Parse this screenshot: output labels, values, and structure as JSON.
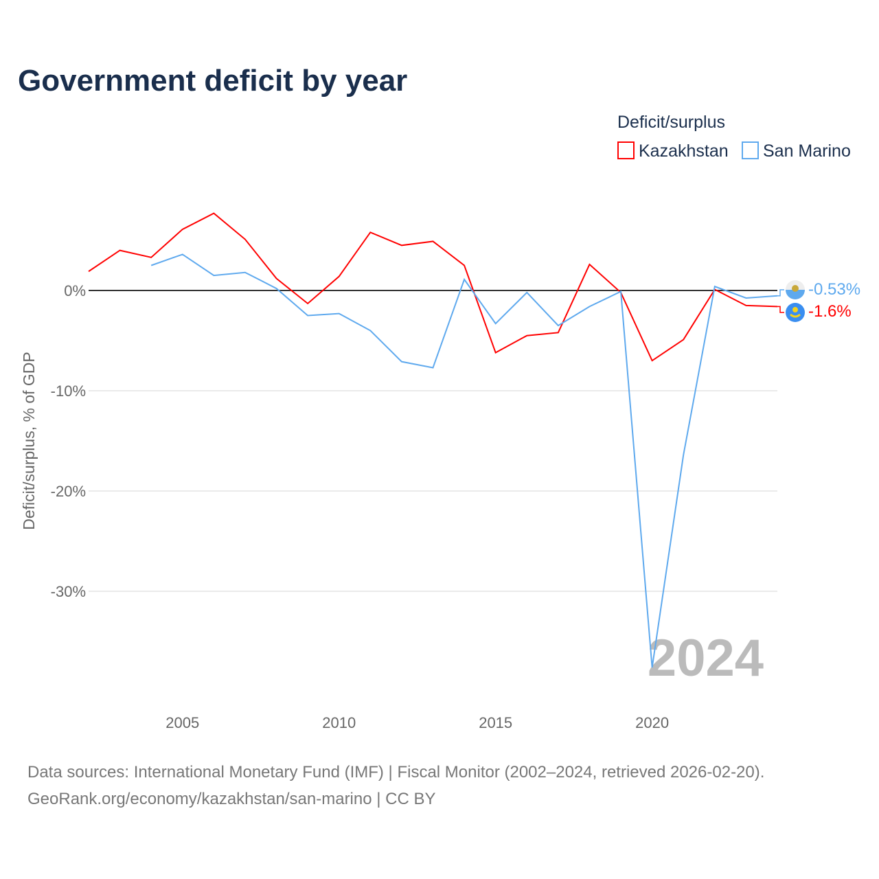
{
  "title": "Government deficit by year",
  "legend": {
    "title": "Deficit/surplus",
    "items": [
      {
        "name": "Kazakhstan",
        "color": "#ff0000"
      },
      {
        "name": "San Marino",
        "color": "#5ea9ee"
      }
    ]
  },
  "source_lines": [
    "Data sources: International Monetary Fund (IMF) | Fiscal Monitor (2002–2024, retrieved 2026-02-20).",
    "GeoRank.org/economy/kazakhstan/san-marino | CC BY"
  ],
  "chart_data": {
    "type": "line",
    "title": "Government deficit by year",
    "xlabel": "",
    "ylabel": "Deficit/surplus, % of GDP",
    "xlim": [
      2002,
      2024
    ],
    "ylim": [
      -40,
      9.5
    ],
    "x_ticks": [
      2005,
      2010,
      2015,
      2020
    ],
    "y_ticks": [
      0,
      -10,
      -20,
      -30
    ],
    "y_tick_labels": [
      "0%",
      "-10%",
      "-20%",
      "-30%"
    ],
    "current_year_label": "2024",
    "legend_position": "top-right",
    "series": [
      {
        "name": "Kazakhstan",
        "color": "#ff0000",
        "end_label": "-1.6%",
        "x": [
          2002,
          2003,
          2004,
          2005,
          2006,
          2007,
          2008,
          2009,
          2010,
          2011,
          2012,
          2013,
          2014,
          2015,
          2016,
          2017,
          2018,
          2019,
          2020,
          2021,
          2022,
          2023,
          2024
        ],
        "values": [
          1.9,
          4.0,
          3.3,
          6.1,
          7.7,
          5.1,
          1.2,
          -1.3,
          1.4,
          5.8,
          4.5,
          4.9,
          2.5,
          -6.2,
          -4.5,
          -4.2,
          2.6,
          -0.2,
          -7.0,
          -4.9,
          0.1,
          -1.5,
          -1.6
        ]
      },
      {
        "name": "San Marino",
        "color": "#5ea9ee",
        "end_label": "-0.53%",
        "x": [
          2004,
          2005,
          2006,
          2007,
          2008,
          2009,
          2010,
          2011,
          2012,
          2013,
          2014,
          2015,
          2016,
          2017,
          2018,
          2019,
          2020,
          2021,
          2022,
          2023,
          2024
        ],
        "values": [
          2.5,
          3.6,
          1.5,
          1.8,
          0.2,
          -2.5,
          -2.3,
          -4.0,
          -7.1,
          -7.7,
          1.1,
          -3.3,
          -0.2,
          -3.5,
          -1.6,
          -0.1,
          -37.6,
          -16.4,
          0.4,
          -0.75,
          -0.53
        ]
      }
    ]
  }
}
